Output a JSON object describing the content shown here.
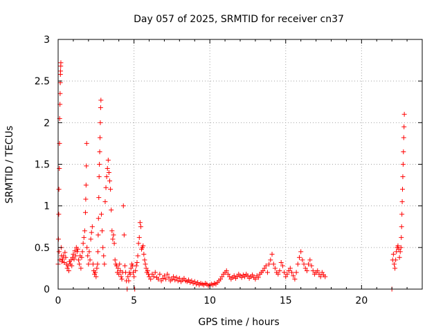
{
  "chart_data": {
    "type": "scatter",
    "title": "Day 057 of 2025, SRMTID for receiver cn37",
    "xlabel": "GPS time / hours",
    "ylabel": "SRMTID / TECUs",
    "xlim": [
      0,
      24
    ],
    "ylim": [
      0,
      3
    ],
    "xticks": [
      0,
      5,
      10,
      15,
      20
    ],
    "yticks": [
      0,
      0.5,
      1,
      1.5,
      2,
      2.5,
      3
    ],
    "xtick_labels": [
      "0",
      "5",
      "10",
      "15",
      "20"
    ],
    "ytick_labels": [
      "0",
      "0.5",
      "1",
      "1.5",
      "2",
      "2.5",
      "3"
    ],
    "grid": true,
    "marker": "+",
    "color": "#ff0000",
    "series": [
      {
        "name": "SRMTID",
        "points": [
          [
            0.0,
            0.3
          ],
          [
            0.02,
            0.6
          ],
          [
            0.04,
            0.9
          ],
          [
            0.05,
            1.2
          ],
          [
            0.06,
            0.45
          ],
          [
            0.08,
            1.45
          ],
          [
            0.09,
            1.75
          ],
          [
            0.1,
            2.05
          ],
          [
            0.11,
            0.35
          ],
          [
            0.12,
            2.22
          ],
          [
            0.13,
            2.35
          ],
          [
            0.14,
            2.48
          ],
          [
            0.15,
            2.58
          ],
          [
            0.16,
            2.62
          ],
          [
            0.17,
            2.68
          ],
          [
            0.18,
            2.72
          ],
          [
            0.2,
            0.5
          ],
          [
            0.22,
            0.4
          ],
          [
            0.25,
            0.33
          ],
          [
            0.3,
            0.36
          ],
          [
            0.35,
            0.4
          ],
          [
            0.4,
            0.32
          ],
          [
            0.45,
            0.44
          ],
          [
            0.5,
            0.38
          ],
          [
            0.55,
            0.3
          ],
          [
            0.6,
            0.25
          ],
          [
            0.65,
            0.28
          ],
          [
            0.7,
            0.22
          ],
          [
            0.75,
            0.33
          ],
          [
            0.8,
            0.3
          ],
          [
            0.85,
            0.35
          ],
          [
            0.9,
            0.28
          ],
          [
            0.95,
            0.38
          ],
          [
            1.0,
            0.42
          ],
          [
            1.05,
            0.36
          ],
          [
            1.1,
            0.46
          ],
          [
            1.15,
            0.4
          ],
          [
            1.2,
            0.5
          ],
          [
            1.25,
            0.45
          ],
          [
            1.3,
            0.48
          ],
          [
            1.35,
            0.35
          ],
          [
            1.4,
            0.3
          ],
          [
            1.45,
            0.4
          ],
          [
            1.5,
            0.25
          ],
          [
            1.55,
            0.38
          ],
          [
            1.6,
            0.45
          ],
          [
            1.65,
            0.55
          ],
          [
            1.7,
            0.62
          ],
          [
            1.75,
            0.7
          ],
          [
            1.8,
            0.92
          ],
          [
            1.82,
            1.08
          ],
          [
            1.84,
            1.25
          ],
          [
            1.86,
            1.48
          ],
          [
            1.88,
            1.75
          ],
          [
            1.9,
            0.5
          ],
          [
            1.95,
            0.4
          ],
          [
            2.0,
            0.3
          ],
          [
            2.05,
            0.45
          ],
          [
            2.1,
            0.35
          ],
          [
            2.15,
            0.6
          ],
          [
            2.2,
            0.68
          ],
          [
            2.25,
            0.75
          ],
          [
            2.3,
            0.3
          ],
          [
            2.35,
            0.22
          ],
          [
            2.4,
            0.18
          ],
          [
            2.45,
            0.2
          ],
          [
            2.5,
            0.15
          ],
          [
            2.55,
            0.25
          ],
          [
            2.6,
            0.3
          ],
          [
            2.62,
            0.45
          ],
          [
            2.64,
            0.65
          ],
          [
            2.66,
            0.85
          ],
          [
            2.68,
            1.1
          ],
          [
            2.7,
            1.35
          ],
          [
            2.72,
            1.5
          ],
          [
            2.74,
            1.65
          ],
          [
            2.76,
            1.82
          ],
          [
            2.78,
            2.0
          ],
          [
            2.8,
            2.18
          ],
          [
            2.82,
            2.27
          ],
          [
            2.85,
            0.9
          ],
          [
            2.9,
            0.7
          ],
          [
            2.95,
            0.5
          ],
          [
            3.0,
            0.4
          ],
          [
            3.05,
            0.3
          ],
          [
            3.1,
            1.05
          ],
          [
            3.15,
            1.22
          ],
          [
            3.2,
            1.35
          ],
          [
            3.25,
            1.45
          ],
          [
            3.3,
            1.55
          ],
          [
            3.35,
            1.4
          ],
          [
            3.4,
            1.3
          ],
          [
            3.45,
            1.2
          ],
          [
            3.5,
            0.95
          ],
          [
            3.55,
            0.7
          ],
          [
            3.6,
            0.6
          ],
          [
            3.65,
            0.65
          ],
          [
            3.7,
            0.55
          ],
          [
            3.75,
            0.35
          ],
          [
            3.8,
            0.3
          ],
          [
            3.85,
            0.28
          ],
          [
            3.9,
            0.2
          ],
          [
            3.95,
            0.25
          ],
          [
            4.0,
            0.18
          ],
          [
            4.05,
            0.3
          ],
          [
            4.1,
            0.22
          ],
          [
            4.15,
            0.15
          ],
          [
            4.2,
            0.12
          ],
          [
            4.25,
            0.2
          ],
          [
            4.3,
            1.0
          ],
          [
            4.35,
            0.65
          ],
          [
            4.4,
            0.28
          ],
          [
            4.45,
            0.2
          ],
          [
            4.5,
            0.1
          ],
          [
            4.55,
            0.0
          ],
          [
            4.6,
            0.15
          ],
          [
            4.65,
            0.1
          ],
          [
            4.7,
            0.2
          ],
          [
            4.75,
            0.18
          ],
          [
            4.8,
            0.25
          ],
          [
            4.85,
            0.3
          ],
          [
            4.9,
            0.28
          ],
          [
            4.95,
            0.2
          ],
          [
            5.0,
            0.15
          ],
          [
            5.05,
            0.0
          ],
          [
            5.1,
            0.22
          ],
          [
            5.15,
            0.28
          ],
          [
            5.2,
            0.32
          ],
          [
            5.25,
            0.4
          ],
          [
            5.3,
            0.55
          ],
          [
            5.35,
            0.62
          ],
          [
            5.4,
            0.8
          ],
          [
            5.45,
            0.75
          ],
          [
            5.5,
            0.48
          ],
          [
            5.55,
            0.5
          ],
          [
            5.6,
            0.52
          ],
          [
            5.65,
            0.42
          ],
          [
            5.7,
            0.35
          ],
          [
            5.75,
            0.3
          ],
          [
            5.8,
            0.25
          ],
          [
            5.85,
            0.2
          ],
          [
            5.9,
            0.22
          ],
          [
            5.95,
            0.18
          ],
          [
            6.0,
            0.15
          ],
          [
            6.1,
            0.12
          ],
          [
            6.2,
            0.18
          ],
          [
            6.3,
            0.15
          ],
          [
            6.4,
            0.2
          ],
          [
            6.5,
            0.14
          ],
          [
            6.6,
            0.12
          ],
          [
            6.7,
            0.18
          ],
          [
            6.8,
            0.1
          ],
          [
            6.9,
            0.13
          ],
          [
            7.0,
            0.16
          ],
          [
            7.1,
            0.12
          ],
          [
            7.2,
            0.18
          ],
          [
            7.3,
            0.14
          ],
          [
            7.4,
            0.1
          ],
          [
            7.5,
            0.12
          ],
          [
            7.6,
            0.15
          ],
          [
            7.7,
            0.11
          ],
          [
            7.8,
            0.14
          ],
          [
            7.9,
            0.1
          ],
          [
            8.0,
            0.13
          ],
          [
            8.1,
            0.09
          ],
          [
            8.2,
            0.11
          ],
          [
            8.3,
            0.13
          ],
          [
            8.4,
            0.1
          ],
          [
            8.5,
            0.09
          ],
          [
            8.6,
            0.11
          ],
          [
            8.7,
            0.08
          ],
          [
            8.8,
            0.1
          ],
          [
            8.9,
            0.07
          ],
          [
            9.0,
            0.09
          ],
          [
            9.1,
            0.06
          ],
          [
            9.2,
            0.08
          ],
          [
            9.3,
            0.05
          ],
          [
            9.4,
            0.07
          ],
          [
            9.5,
            0.06
          ],
          [
            9.6,
            0.05
          ],
          [
            9.7,
            0.07
          ],
          [
            9.8,
            0.06
          ],
          [
            9.9,
            0.04
          ],
          [
            10.0,
            0.05
          ],
          [
            10.1,
            0.06
          ],
          [
            10.2,
            0.05
          ],
          [
            10.3,
            0.07
          ],
          [
            10.4,
            0.06
          ],
          [
            10.5,
            0.08
          ],
          [
            10.6,
            0.1
          ],
          [
            10.7,
            0.12
          ],
          [
            10.8,
            0.15
          ],
          [
            10.9,
            0.18
          ],
          [
            11.0,
            0.2
          ],
          [
            11.1,
            0.22
          ],
          [
            11.2,
            0.18
          ],
          [
            11.3,
            0.15
          ],
          [
            11.4,
            0.12
          ],
          [
            11.5,
            0.14
          ],
          [
            11.6,
            0.16
          ],
          [
            11.7,
            0.13
          ],
          [
            11.8,
            0.15
          ],
          [
            11.9,
            0.18
          ],
          [
            12.0,
            0.16
          ],
          [
            12.1,
            0.14
          ],
          [
            12.2,
            0.17
          ],
          [
            12.3,
            0.15
          ],
          [
            12.4,
            0.18
          ],
          [
            12.5,
            0.16
          ],
          [
            12.6,
            0.13
          ],
          [
            12.7,
            0.15
          ],
          [
            12.8,
            0.17
          ],
          [
            12.9,
            0.14
          ],
          [
            13.0,
            0.12
          ],
          [
            13.1,
            0.16
          ],
          [
            13.2,
            0.14
          ],
          [
            13.3,
            0.18
          ],
          [
            13.4,
            0.2
          ],
          [
            13.5,
            0.22
          ],
          [
            13.6,
            0.25
          ],
          [
            13.7,
            0.28
          ],
          [
            13.8,
            0.2
          ],
          [
            13.9,
            0.3
          ],
          [
            14.0,
            0.35
          ],
          [
            14.1,
            0.42
          ],
          [
            14.2,
            0.3
          ],
          [
            14.3,
            0.25
          ],
          [
            14.4,
            0.2
          ],
          [
            14.5,
            0.18
          ],
          [
            14.6,
            0.22
          ],
          [
            14.7,
            0.32
          ],
          [
            14.8,
            0.28
          ],
          [
            14.9,
            0.2
          ],
          [
            15.0,
            0.15
          ],
          [
            15.1,
            0.18
          ],
          [
            15.2,
            0.22
          ],
          [
            15.3,
            0.25
          ],
          [
            15.4,
            0.2
          ],
          [
            15.5,
            0.16
          ],
          [
            15.6,
            0.12
          ],
          [
            15.7,
            0.2
          ],
          [
            15.8,
            0.3
          ],
          [
            15.9,
            0.38
          ],
          [
            16.0,
            0.45
          ],
          [
            16.1,
            0.35
          ],
          [
            16.2,
            0.3
          ],
          [
            16.3,
            0.25
          ],
          [
            16.4,
            0.22
          ],
          [
            16.5,
            0.3
          ],
          [
            16.6,
            0.35
          ],
          [
            16.7,
            0.28
          ],
          [
            16.8,
            0.22
          ],
          [
            16.9,
            0.18
          ],
          [
            17.0,
            0.2
          ],
          [
            17.1,
            0.22
          ],
          [
            17.2,
            0.18
          ],
          [
            17.3,
            0.15
          ],
          [
            17.4,
            0.2
          ],
          [
            17.5,
            0.17
          ],
          [
            17.6,
            0.15
          ],
          [
            22.0,
            0.0
          ],
          [
            22.05,
            0.35
          ],
          [
            22.1,
            0.42
          ],
          [
            22.15,
            0.3
          ],
          [
            22.2,
            0.25
          ],
          [
            22.25,
            0.35
          ],
          [
            22.3,
            0.45
          ],
          [
            22.35,
            0.5
          ],
          [
            22.4,
            0.52
          ],
          [
            22.45,
            0.48
          ],
          [
            22.5,
            0.38
          ],
          [
            22.55,
            0.45
          ],
          [
            22.6,
            0.5
          ],
          [
            22.62,
            0.62
          ],
          [
            22.64,
            0.75
          ],
          [
            22.66,
            0.9
          ],
          [
            22.68,
            1.05
          ],
          [
            22.7,
            1.2
          ],
          [
            22.72,
            1.35
          ],
          [
            22.74,
            1.5
          ],
          [
            22.76,
            1.65
          ],
          [
            22.78,
            1.82
          ],
          [
            22.8,
            1.95
          ],
          [
            22.82,
            2.1
          ]
        ]
      }
    ]
  }
}
